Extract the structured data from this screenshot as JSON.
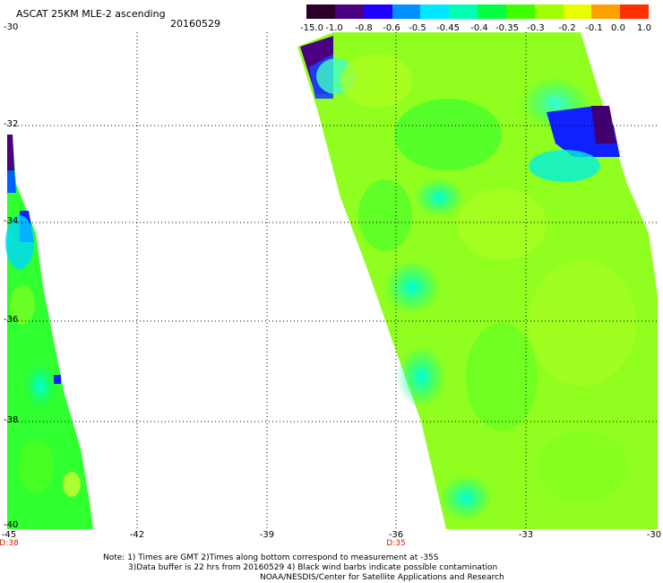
{
  "header": {
    "title": "ASCAT 25KM MLE-2 ascending",
    "date": "20160529"
  },
  "colorbar": {
    "labels": [
      "-15.0",
      "-1.0",
      "-0.8",
      "-0.6",
      "-0.5",
      "-0.45",
      "-0.4",
      "-0.35",
      "-0.3",
      "-0.2",
      "-0.1",
      "0.0",
      "1.0"
    ],
    "colors": [
      "#2a0028",
      "#4a0080",
      "#2000ff",
      "#0090ff",
      "#00e8ff",
      "#00ffb0",
      "#00ff40",
      "#40ff00",
      "#a0ff00",
      "#e8ff00",
      "#ffa000",
      "#ff3000"
    ]
  },
  "map": {
    "lat_labels": [
      "-30",
      "-32",
      "-34",
      "-36",
      "-38",
      "-40"
    ],
    "lon_labels": [
      "-45",
      "-42",
      "-39",
      "-36",
      "-33",
      "-30"
    ],
    "time_labels": [
      "D:38",
      "D:35"
    ]
  },
  "notes": {
    "line1": "Note: 1) Times are GMT 2)Times along bottom correspond to measurement at -35S",
    "line2": "3)Data buffer is 22 hrs from 20160529 4) Black wind barbs indicate possible contamination",
    "line3": "NOAA/NESDIS/Center for Satellite Applications and Research"
  }
}
